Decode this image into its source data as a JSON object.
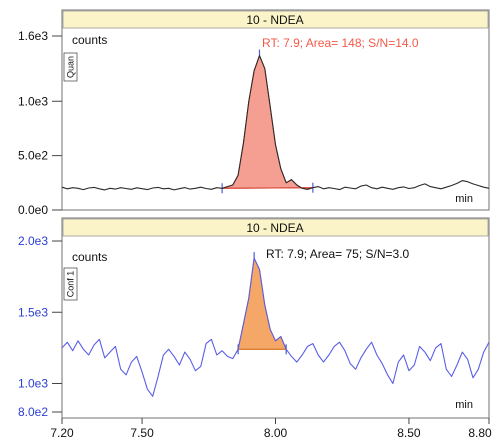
{
  "chart_data": [
    {
      "type": "line",
      "title": "10 - NDEA",
      "side_label": "Quan",
      "ylabel": "counts",
      "xlabel": "min",
      "xlim": [
        7.2,
        8.8
      ],
      "ylim": [
        0,
        1600
      ],
      "yticks": [
        {
          "value": 1600,
          "label": "1.6e3"
        },
        {
          "value": 1000,
          "label": "1.0e3"
        },
        {
          "value": 500,
          "label": "5.0e2"
        },
        {
          "value": 0,
          "label": "0.0e0"
        }
      ],
      "ytick_color": "#111111",
      "trace_color": "#2b2b2b",
      "peak_fill": "#f49a8c",
      "peak_edge": "#d94a3a",
      "integration_marker_color": "#4a5fd0",
      "peak_window": [
        7.8,
        8.15
      ],
      "annotation": {
        "text": "RT: 7.9; Area= 148; S/N=14.0",
        "color": "#f25a48"
      },
      "series": [
        {
          "x": [
            7.2,
            7.22,
            7.24,
            7.26,
            7.28,
            7.3,
            7.32,
            7.34,
            7.36,
            7.38,
            7.4,
            7.42,
            7.44,
            7.46,
            7.48,
            7.5,
            7.52,
            7.54,
            7.56,
            7.58,
            7.6,
            7.62,
            7.64,
            7.66,
            7.68,
            7.7,
            7.72,
            7.74,
            7.76,
            7.78,
            7.8,
            7.82,
            7.84,
            7.86,
            7.88,
            7.9,
            7.92,
            7.94,
            7.96,
            7.98,
            8.0,
            8.02,
            8.04,
            8.06,
            8.08,
            8.1,
            8.12,
            8.14,
            8.16,
            8.18,
            8.2,
            8.22,
            8.24,
            8.26,
            8.28,
            8.3,
            8.32,
            8.34,
            8.36,
            8.38,
            8.4,
            8.42,
            8.44,
            8.46,
            8.48,
            8.5,
            8.52,
            8.54,
            8.56,
            8.58,
            8.6,
            8.62,
            8.64,
            8.66,
            8.68,
            8.7,
            8.72,
            8.74,
            8.76,
            8.78,
            8.8
          ],
          "y": [
            210,
            195,
            205,
            200,
            188,
            202,
            208,
            195,
            185,
            200,
            192,
            205,
            198,
            190,
            204,
            196,
            188,
            202,
            208,
            195,
            200,
            185,
            196,
            206,
            192,
            200,
            210,
            198,
            190,
            205,
            200,
            215,
            230,
            320,
            620,
            1000,
            1280,
            1420,
            1300,
            950,
            600,
            380,
            250,
            280,
            230,
            200,
            190,
            205,
            215,
            195,
            205,
            198,
            188,
            210,
            202,
            195,
            220,
            230,
            205,
            195,
            210,
            200,
            190,
            205,
            212,
            198,
            205,
            225,
            240,
            215,
            205,
            195,
            210,
            225,
            245,
            270,
            260,
            240,
            225,
            210,
            200
          ]
        }
      ]
    },
    {
      "type": "line",
      "title": "10 - NDEA",
      "side_label": "Conf 1",
      "ylabel": "counts",
      "xlabel": "min",
      "xlim": [
        7.2,
        8.8
      ],
      "ylim": [
        800,
        2000
      ],
      "yticks": [
        {
          "value": 2000,
          "label": "2.0e3"
        },
        {
          "value": 1500,
          "label": "1.5e3"
        },
        {
          "value": 1000,
          "label": "1.0e3"
        },
        {
          "value": 800,
          "label": "8.0e2"
        }
      ],
      "ytick_color": "#2b3ed1",
      "trace_color": "#5a5ee6",
      "peak_fill": "#f3a25f",
      "peak_edge": "#d9782a",
      "integration_marker_color": "#4a5fd0",
      "peak_window": [
        7.85,
        8.05
      ],
      "annotation": {
        "text": "RT: 7.9; Area= 75; S/N=3.0",
        "color": "#111111"
      },
      "x_ticks": [
        7.2,
        7.5,
        8.0,
        8.5,
        8.8
      ],
      "x_tick_labels": [
        "7.20",
        "7.50",
        "8.00",
        "8.50",
        "8.80"
      ],
      "series": [
        {
          "x": [
            7.2,
            7.22,
            7.24,
            7.26,
            7.28,
            7.3,
            7.32,
            7.34,
            7.36,
            7.38,
            7.4,
            7.42,
            7.44,
            7.46,
            7.48,
            7.5,
            7.52,
            7.54,
            7.56,
            7.58,
            7.6,
            7.62,
            7.64,
            7.66,
            7.68,
            7.7,
            7.72,
            7.74,
            7.76,
            7.78,
            7.8,
            7.82,
            7.84,
            7.86,
            7.88,
            7.9,
            7.92,
            7.94,
            7.96,
            7.98,
            8.0,
            8.02,
            8.04,
            8.06,
            8.08,
            8.1,
            8.12,
            8.14,
            8.16,
            8.18,
            8.2,
            8.22,
            8.24,
            8.26,
            8.28,
            8.3,
            8.32,
            8.34,
            8.36,
            8.38,
            8.4,
            8.42,
            8.44,
            8.46,
            8.48,
            8.5,
            8.52,
            8.54,
            8.56,
            8.58,
            8.6,
            8.62,
            8.64,
            8.66,
            8.68,
            8.7,
            8.72,
            8.74,
            8.76,
            8.78,
            8.8
          ],
          "y": [
            1250,
            1290,
            1230,
            1300,
            1240,
            1200,
            1270,
            1310,
            1180,
            1220,
            1260,
            1100,
            1060,
            1150,
            1190,
            1080,
            960,
            910,
            1050,
            1200,
            1240,
            1190,
            1130,
            1220,
            1170,
            1090,
            1120,
            1280,
            1310,
            1200,
            1230,
            1190,
            1175,
            1240,
            1420,
            1600,
            1880,
            1800,
            1550,
            1380,
            1300,
            1330,
            1240,
            1190,
            1150,
            1200,
            1260,
            1280,
            1200,
            1150,
            1200,
            1260,
            1290,
            1230,
            1140,
            1100,
            1180,
            1240,
            1290,
            1200,
            1140,
            1060,
            1000,
            1150,
            1200,
            1090,
            1130,
            1260,
            1220,
            1160,
            1250,
            1280,
            1100,
            1050,
            1130,
            1220,
            1170,
            1040,
            1100,
            1220,
            1290
          ]
        }
      ]
    }
  ]
}
